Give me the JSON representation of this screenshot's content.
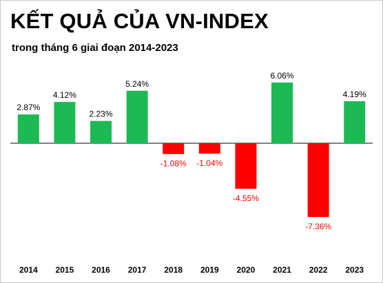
{
  "chart_data": {
    "type": "bar",
    "title": "KẾT QUẢ CỦA VN-INDEX",
    "subtitle": "trong tháng 6 giai đoạn 2014-2023",
    "categories": [
      "2014",
      "2015",
      "2016",
      "2017",
      "2018",
      "2019",
      "2020",
      "2021",
      "2022",
      "2023"
    ],
    "values": [
      2.87,
      4.12,
      2.23,
      5.24,
      -1.08,
      -1.04,
      -4.55,
      6.06,
      -7.36,
      4.19
    ],
    "data_labels": [
      "2.87%",
      "4.12%",
      "2.23%",
      "5.24%",
      "-1.08%",
      "-1.04%",
      "-4.55%",
      "6.06%",
      "-7.36%",
      "4.19%"
    ],
    "ylim": [
      -8,
      8
    ],
    "grid": false,
    "colors": {
      "positive": "#1db954",
      "negative": "#ff0000",
      "positive_label": "#000000",
      "negative_label": "#ff0000",
      "axis": "#000000"
    }
  }
}
